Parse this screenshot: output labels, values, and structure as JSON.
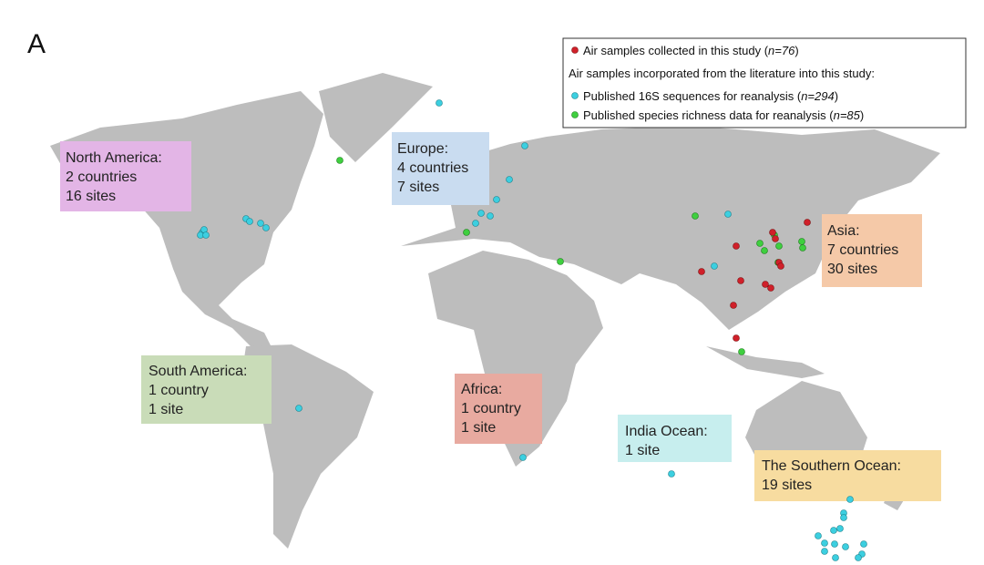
{
  "panel_label": "A",
  "legend": {
    "items": [
      {
        "prefix": "Air samples collected in this study (",
        "count": "n=76",
        "suffix": ")"
      },
      {
        "heading": "Air samples incorporated from the literature into this study:"
      },
      {
        "prefix": "Published 16S sequences for reanalysis (",
        "count": "n=294",
        "suffix": ")"
      },
      {
        "prefix": "Published species richness data for reanalysis (",
        "count": "n=85",
        "suffix": ")"
      }
    ]
  },
  "regions": [
    {
      "lines": [
        "North America:",
        "2 countries",
        "16 sites"
      ]
    },
    {
      "lines": [
        "Europe:",
        "4 countries",
        "7 sites"
      ]
    },
    {
      "lines": [
        "Asia:",
        "7 countries",
        "30 sites"
      ]
    },
    {
      "lines": [
        "South America:",
        "1 country",
        "1 site"
      ]
    },
    {
      "lines": [
        "Africa:",
        "1 country",
        "1 site"
      ]
    },
    {
      "lines": [
        "India Ocean:",
        "1 site"
      ]
    },
    {
      "lines": [
        "The Southern Ocean:",
        "19 sites"
      ]
    }
  ]
}
